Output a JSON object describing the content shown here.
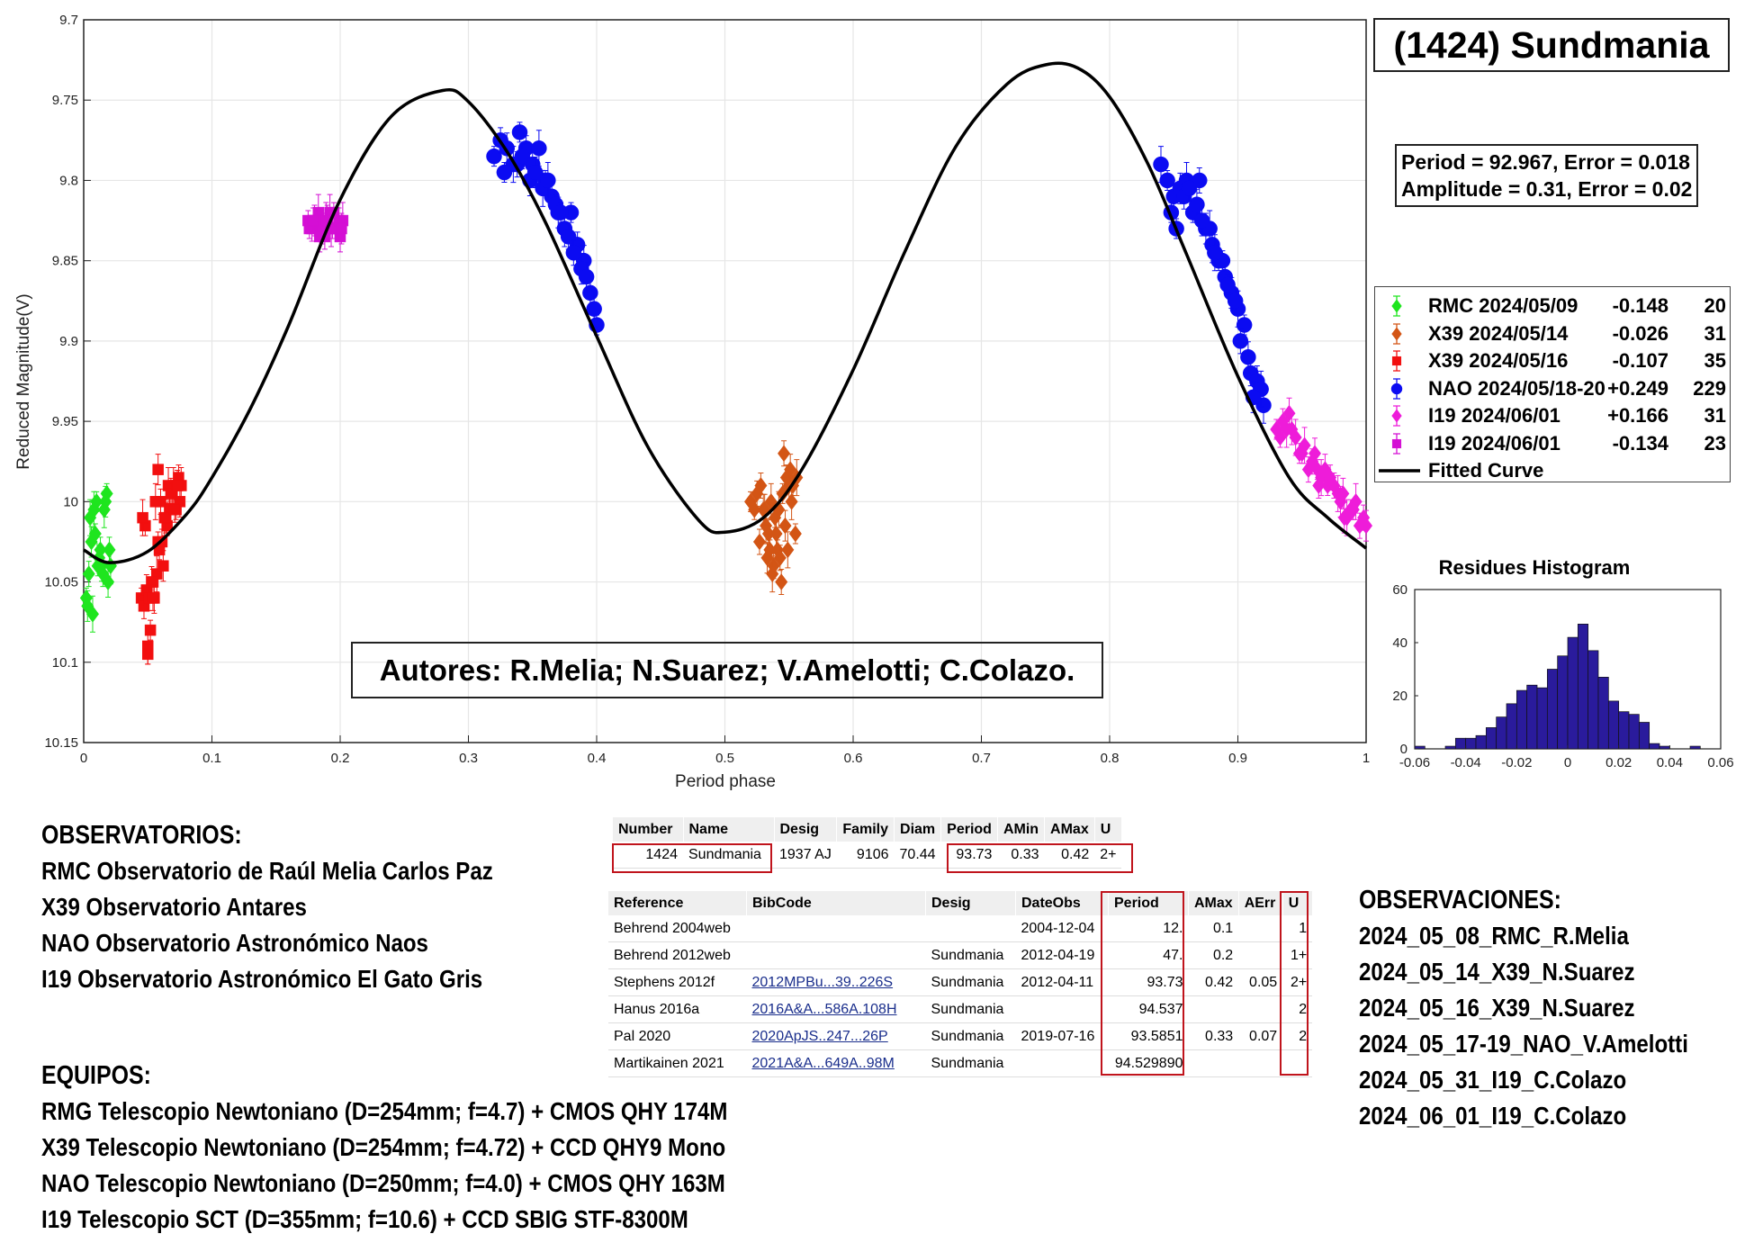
{
  "title": "(1424) Sundmania",
  "stats": {
    "line1": "Period =  92.967, Error = 0.018",
    "line2": "Amplitude = 0.31, Error = 0.02"
  },
  "legend": [
    {
      "name": "RMC 2024/05/09",
      "offset": "-0.148",
      "n": "20",
      "color": "#1ee51e",
      "marker": "diamond"
    },
    {
      "name": "X39 2024/05/14",
      "offset": "-0.026",
      "n": "31",
      "color": "#d35515",
      "marker": "diamond"
    },
    {
      "name": "X39 2024/05/16",
      "offset": "-0.107",
      "n": "35",
      "color": "#f20f0f",
      "marker": "square"
    },
    {
      "name": "NAO 2024/05/18-20",
      "offset": "+0.249",
      "n": "229",
      "color": "#0b0bf2",
      "marker": "circle"
    },
    {
      "name": "I19 2024/06/01",
      "offset": "+0.166",
      "n": "31",
      "color": "#ee1cd9",
      "marker": "diamond"
    },
    {
      "name": "I19 2024/06/01",
      "offset": "-0.134",
      "n": "23",
      "color": "#d40fd4",
      "marker": "square"
    },
    {
      "name": "Fitted Curve",
      "offset": "",
      "n": "",
      "color": "#000000",
      "marker": "line"
    }
  ],
  "authors": "Autores: R.Melia; N.Suarez; V.Amelotti; C.Colazo.",
  "chart_data": [
    {
      "type": "scatter",
      "title": "",
      "xlabel": "Period phase",
      "ylabel": "Reduced Magnitude(V)",
      "xlim": [
        0,
        1
      ],
      "ylim": [
        10.15,
        9.7
      ],
      "y_reversed": true,
      "xticks": [
        "0",
        "0.1",
        "0.2",
        "0.3",
        "0.4",
        "0.5",
        "0.6",
        "0.7",
        "0.8",
        "0.9",
        "1"
      ],
      "yticks": [
        "9.7",
        "9.75",
        "9.8",
        "9.85",
        "9.9",
        "9.95",
        "10",
        "10.05",
        "10.1",
        "10.15"
      ],
      "grid": true,
      "fitted_curve": {
        "mean": 9.891,
        "phase": [
          0,
          0.02,
          0.05,
          0.08,
          0.1,
          0.13,
          0.16,
          0.2,
          0.24,
          0.28,
          0.3,
          0.33,
          0.36,
          0.4,
          0.44,
          0.48,
          0.5,
          0.53,
          0.56,
          0.6,
          0.64,
          0.68,
          0.72,
          0.75,
          0.775,
          0.8,
          0.83,
          0.86,
          0.9,
          0.94,
          0.97,
          1.0
        ],
        "mag": [
          10.03,
          10.038,
          10.031,
          10.008,
          9.985,
          9.942,
          9.89,
          9.812,
          9.76,
          9.744,
          9.751,
          9.782,
          9.826,
          9.897,
          9.966,
          10.012,
          10.019,
          10.01,
          9.98,
          9.918,
          9.845,
          9.779,
          9.74,
          9.728,
          9.73,
          9.748,
          9.79,
          9.846,
          9.922,
          9.985,
          10.01,
          10.029
        ]
      },
      "series": [
        {
          "name": "RMC 2024/05/09",
          "phase": [
            0.002,
            0.004,
            0.006,
            0.008,
            0.01,
            0.012,
            0.014,
            0.016,
            0.018,
            0.02,
            0.003,
            0.007,
            0.011,
            0.015,
            0.019,
            0.005,
            0.009,
            0.013,
            0.017,
            0.021
          ],
          "mag": [
            10.06,
            10.045,
            10.025,
            10.005,
            10.0,
            10.035,
            10.04,
            10.005,
            9.995,
            10.03,
            10.065,
            10.07,
            10.04,
            10.045,
            10.05,
            10.01,
            10.02,
            10.03,
            10.0,
            10.04
          ]
        },
        {
          "name": "X39 2024/05/14",
          "phase": [
            0.52,
            0.525,
            0.53,
            0.532,
            0.535,
            0.538,
            0.54,
            0.542,
            0.545,
            0.548,
            0.55,
            0.552,
            0.555,
            0.528,
            0.533,
            0.537,
            0.541,
            0.546,
            0.551,
            0.556,
            0.523,
            0.527,
            0.531,
            0.536,
            0.539,
            0.543,
            0.547,
            0.549,
            0.553,
            0.544,
            0.534
          ],
          "mag": [
            10.0,
            9.995,
            10.005,
            10.015,
            10.03,
            10.04,
            10.02,
            10.005,
            9.995,
            9.985,
            9.99,
            10.0,
            10.02,
            9.99,
            10.035,
            10.045,
            10.03,
            9.97,
            9.98,
            9.985,
            10.005,
            10.025,
            10.005,
            10.0,
            10.01,
            10.035,
            10.015,
            10.03,
            9.99,
            10.05,
            10.02
          ]
        },
        {
          "name": "X39 2024/05/16",
          "phase": [
            0.045,
            0.047,
            0.049,
            0.05,
            0.052,
            0.054,
            0.055,
            0.057,
            0.058,
            0.06,
            0.062,
            0.063,
            0.065,
            0.067,
            0.068,
            0.07,
            0.072,
            0.074,
            0.075,
            0.076,
            0.048,
            0.051,
            0.053,
            0.056,
            0.059,
            0.061,
            0.064,
            0.066,
            0.069,
            0.071,
            0.073,
            0.046,
            0.05,
            0.054,
            0.058
          ],
          "mag": [
            10.06,
            10.065,
            10.055,
            10.09,
            10.08,
            10.05,
            10.06,
            10.045,
            10.025,
            10.0,
            10.04,
            10.01,
            10.015,
            10.005,
            9.995,
            9.99,
            10.005,
            9.985,
            10.0,
            9.99,
            10.015,
            10.06,
            10.05,
            10.0,
            10.03,
            10.025,
            10.01,
            9.99,
            9.995,
            10.005,
            9.99,
            10.01,
            10.095,
            10.06,
            9.98
          ]
        },
        {
          "name": "NAO 2024/05/18-20",
          "phase": [
            0.32,
            0.325,
            0.33,
            0.335,
            0.34,
            0.345,
            0.35,
            0.355,
            0.36,
            0.365,
            0.37,
            0.375,
            0.38,
            0.385,
            0.39,
            0.395,
            0.4,
            0.338,
            0.348,
            0.358,
            0.368,
            0.378,
            0.388,
            0.398,
            0.328,
            0.342,
            0.352,
            0.362,
            0.372,
            0.382,
            0.392,
            0.84,
            0.845,
            0.85,
            0.855,
            0.86,
            0.865,
            0.87,
            0.875,
            0.88,
            0.885,
            0.89,
            0.895,
            0.9,
            0.905,
            0.91,
            0.915,
            0.92,
            0.848,
            0.858,
            0.868,
            0.878,
            0.888,
            0.898,
            0.908,
            0.918,
            0.852,
            0.862,
            0.872,
            0.882,
            0.892,
            0.902,
            0.912
          ],
          "mag": [
            9.785,
            9.775,
            9.78,
            9.79,
            9.77,
            9.78,
            9.79,
            9.78,
            9.8,
            9.81,
            9.82,
            9.83,
            9.82,
            9.84,
            9.85,
            9.87,
            9.89,
            9.79,
            9.8,
            9.805,
            9.815,
            9.835,
            9.855,
            9.88,
            9.795,
            9.785,
            9.795,
            9.8,
            9.82,
            9.845,
            9.86,
            9.79,
            9.8,
            9.81,
            9.805,
            9.8,
            9.82,
            9.8,
            9.83,
            9.84,
            9.85,
            9.86,
            9.87,
            9.88,
            9.89,
            9.92,
            9.925,
            9.94,
            9.82,
            9.81,
            9.815,
            9.83,
            9.85,
            9.875,
            9.91,
            9.93,
            9.83,
            9.805,
            9.825,
            9.845,
            9.865,
            9.9,
            9.935
          ]
        },
        {
          "name": "I19 2024/06/01",
          "phase": [
            0.93,
            0.935,
            0.94,
            0.945,
            0.95,
            0.955,
            0.96,
            0.965,
            0.97,
            0.975,
            0.98,
            0.985,
            0.99,
            0.995,
            1.0,
            0.938,
            0.948,
            0.958,
            0.968,
            0.978,
            0.988,
            0.998,
            0.942,
            0.952,
            0.962,
            0.972,
            0.982,
            0.992,
            0.933,
            0.963,
            0.983
          ],
          "mag": [
            9.955,
            9.95,
            9.945,
            9.96,
            9.97,
            9.98,
            9.97,
            9.985,
            9.99,
            9.99,
            10.0,
            10.01,
            10.005,
            10.015,
            10.015,
            9.955,
            9.97,
            9.975,
            9.98,
            9.995,
            10.005,
            10.01,
            9.955,
            9.965,
            9.98,
            9.985,
            9.995,
            10.0,
            9.96,
            9.99,
            10.01
          ]
        },
        {
          "name": "I19 2024/06/01",
          "phase": [
            0.175,
            0.178,
            0.18,
            0.183,
            0.185,
            0.188,
            0.19,
            0.193,
            0.195,
            0.198,
            0.2,
            0.202,
            0.176,
            0.182,
            0.186,
            0.192,
            0.196,
            0.179,
            0.184,
            0.189,
            0.194,
            0.199,
            0.201
          ],
          "mag": [
            9.825,
            9.83,
            9.825,
            9.82,
            9.83,
            9.835,
            9.825,
            9.83,
            9.82,
            9.83,
            9.835,
            9.825,
            9.83,
            9.825,
            9.83,
            9.82,
            9.83,
            9.825,
            9.835,
            9.825,
            9.83,
            9.825,
            9.83
          ]
        }
      ]
    },
    {
      "type": "bar",
      "title": "Residues Histogram",
      "xlim": [
        -0.06,
        0.06
      ],
      "ylim": [
        0,
        60
      ],
      "xticks": [
        "-0.06",
        "-0.04",
        "-0.02",
        "0",
        "0.02",
        "0.04",
        "0.06"
      ],
      "yticks": [
        "0",
        "20",
        "40",
        "60"
      ],
      "bin_centers": [
        -0.058,
        -0.054,
        -0.05,
        -0.046,
        -0.042,
        -0.038,
        -0.034,
        -0.03,
        -0.026,
        -0.022,
        -0.018,
        -0.014,
        -0.01,
        -0.006,
        -0.002,
        0.002,
        0.006,
        0.01,
        0.014,
        0.018,
        0.022,
        0.026,
        0.03,
        0.034,
        0.038,
        0.042,
        0.046,
        0.05,
        0.054
      ],
      "values": [
        1,
        0,
        0,
        1,
        4,
        4,
        5,
        8,
        12,
        17,
        22,
        24,
        23,
        30,
        35,
        42,
        47,
        37,
        27,
        18,
        14,
        13,
        10,
        2,
        1,
        0,
        0,
        1,
        0
      ],
      "bar_color": "#2a1b9c"
    }
  ],
  "observatorios": {
    "header": "OBSERVATORIOS:",
    "lines": [
      "RMC Observatorio de Raúl Melia Carlos Paz",
      "X39 Observatorio Antares",
      "NAO Observatorio Astronómico Naos",
      "I19 Observatorio Astronómico El Gato Gris"
    ]
  },
  "equipos": {
    "header": "EQUIPOS:",
    "lines": [
      "RMG Telescopio Newtoniano (D=254mm; f=4.7) + CMOS QHY 174M",
      "X39 Telescopio Newtoniano (D=254mm; f=4.72) + CCD QHY9 Mono",
      "NAO Telescopio Newtoniano (D=250mm; f=4.0) + CMOS QHY 163M",
      "I19 Telescopio SCT (D=355mm; f=10.6) + CCD SBIG STF-8300M"
    ]
  },
  "observaciones": {
    "header": "OBSERVACIONES:",
    "lines": [
      "2024_05_08_RMC_R.Melia",
      "2024_05_14_X39_N.Suarez",
      "2024_05_16_X39_N.Suarez",
      "2024_05_17-19_NAO_V.Amelotti",
      "2024_05_31_I19_C.Colazo",
      "2024_06_01_I19_C.Colazo"
    ]
  },
  "lcdb_summary": {
    "headers": [
      "Number",
      "Name",
      "Desig",
      "Family",
      "Diam",
      "Period",
      "AMin",
      "AMax",
      "U"
    ],
    "row": [
      "1424",
      "Sundmania",
      "1937 AJ",
      "9106",
      "70.44",
      "93.73",
      "0.33",
      "0.42",
      "2+"
    ]
  },
  "lcdb_refs": {
    "headers": [
      "Reference",
      "BibCode",
      "Desig",
      "DateObs",
      "Period",
      "AMax",
      "AErr",
      "U"
    ],
    "rows": [
      [
        "Behrend 2004web",
        "",
        "",
        "2004-12-04",
        "12.",
        "0.1",
        "",
        "1"
      ],
      [
        "Behrend 2012web",
        "",
        "Sundmania",
        "2012-04-19",
        "47.",
        "0.2",
        "",
        "1+"
      ],
      [
        "Stephens 2012f",
        "2012MPBu...39..226S",
        "Sundmania",
        "2012-04-11",
        "93.73",
        "0.42",
        "0.05",
        "2+"
      ],
      [
        "Hanus 2016a",
        "2016A&A...586A.108H",
        "Sundmania",
        "",
        "94.537",
        "",
        "",
        "2"
      ],
      [
        "Pal 2020",
        "2020ApJS..247...26P",
        "Sundmania",
        "2019-07-16",
        "93.5851",
        "0.33",
        "0.07",
        "2"
      ],
      [
        "Martikainen 2021",
        "2021A&A...649A..98M",
        "Sundmania",
        "",
        "94.529890",
        "",
        "",
        ""
      ]
    ]
  }
}
